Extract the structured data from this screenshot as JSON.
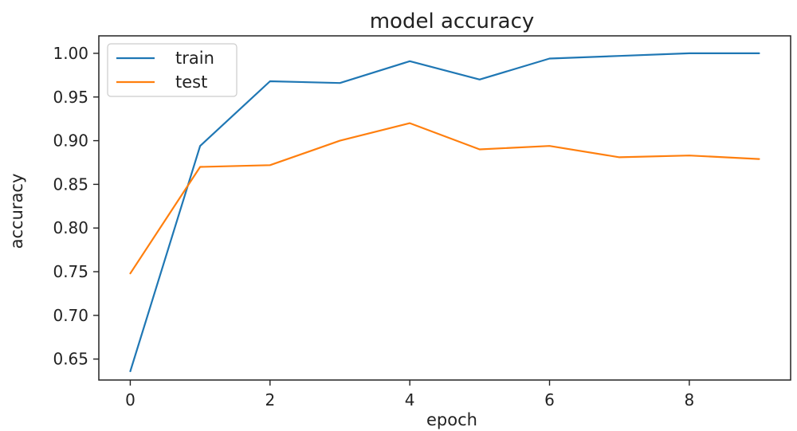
{
  "chart_data": {
    "type": "line",
    "title": "model accuracy",
    "xlabel": "epoch",
    "ylabel": "accuracy",
    "xlim": [
      -0.45,
      9.45
    ],
    "ylim": [
      0.626,
      1.02
    ],
    "xticks": [
      0,
      2,
      4,
      6,
      8
    ],
    "yticks": [
      0.65,
      0.7,
      0.75,
      0.8,
      0.85,
      0.9,
      0.95,
      1.0
    ],
    "ytick_labels": [
      "0.65",
      "0.70",
      "0.75",
      "0.80",
      "0.85",
      "0.90",
      "0.95",
      "1.00"
    ],
    "x": [
      0,
      1,
      2,
      3,
      4,
      5,
      6,
      7,
      8,
      9
    ],
    "series": [
      {
        "name": "train",
        "color": "#1f77b4",
        "values": [
          0.636,
          0.894,
          0.968,
          0.966,
          0.991,
          0.97,
          0.994,
          0.997,
          1.0,
          1.0
        ]
      },
      {
        "name": "test",
        "color": "#ff7f0e",
        "values": [
          0.748,
          0.87,
          0.872,
          0.9,
          0.92,
          0.89,
          0.894,
          0.881,
          0.883,
          0.879
        ]
      }
    ],
    "legend": "top-left",
    "grid": false
  }
}
